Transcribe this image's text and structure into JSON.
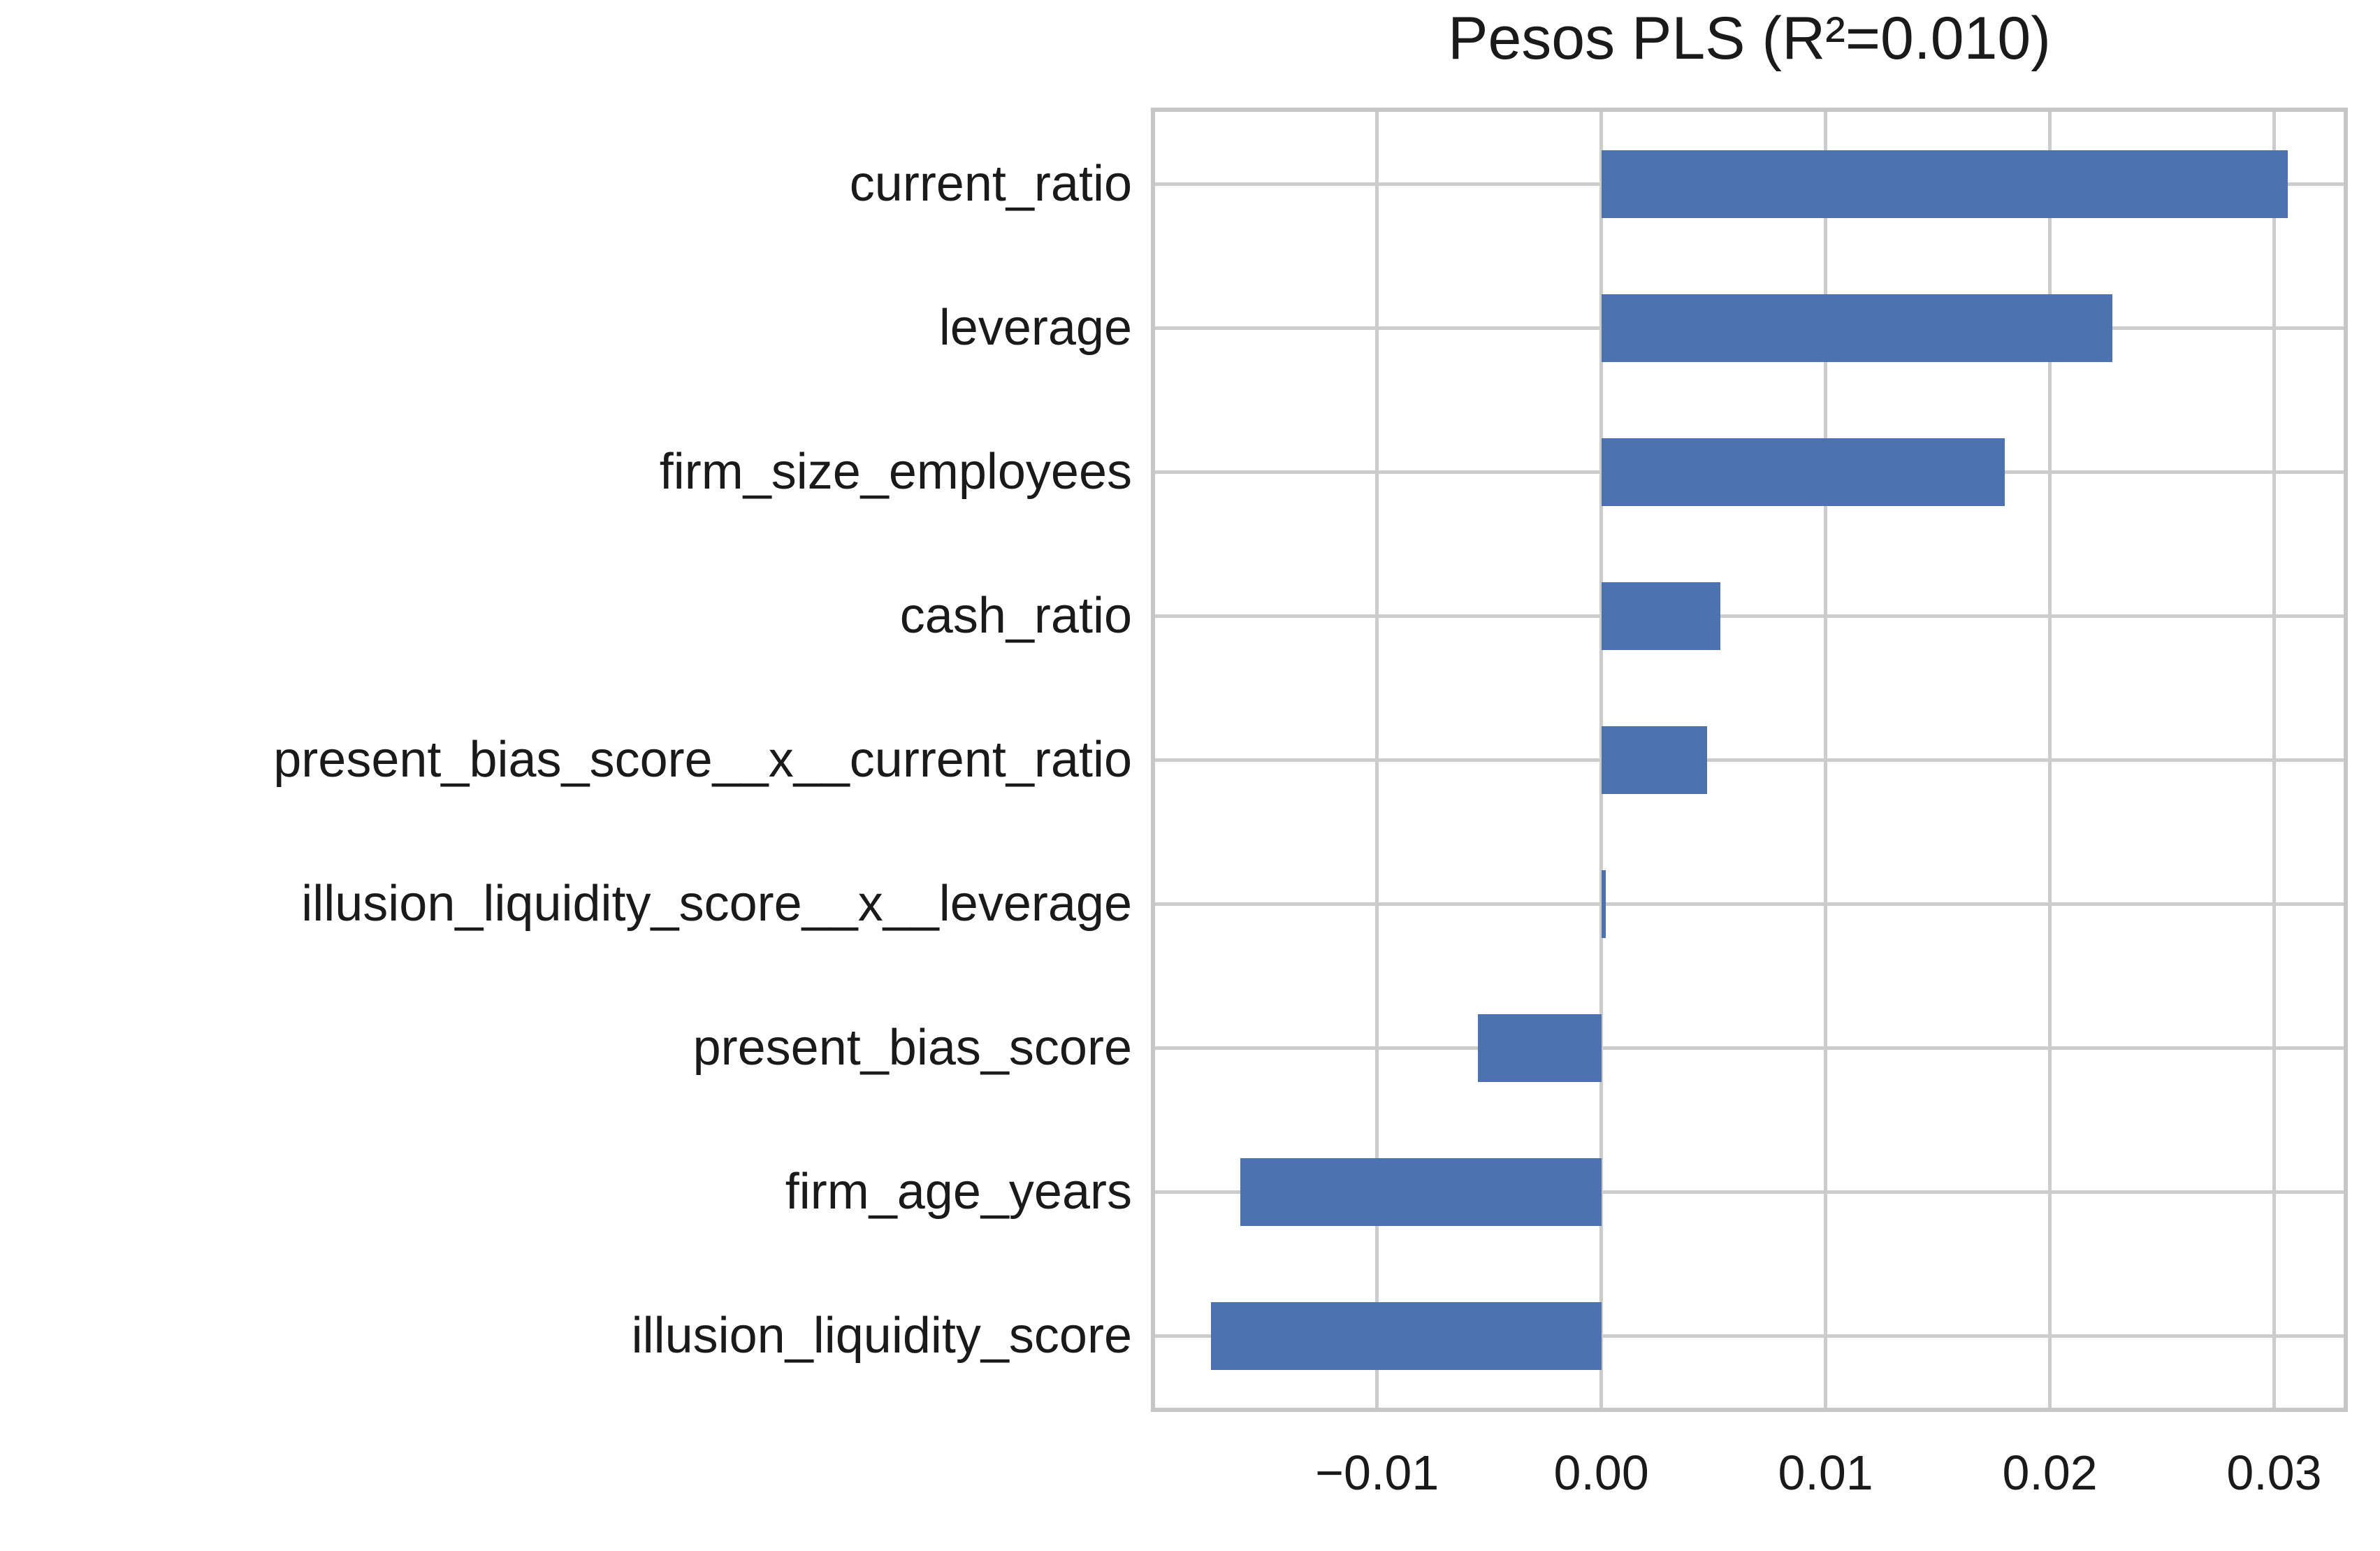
{
  "chart_data": {
    "type": "bar",
    "orientation": "horizontal",
    "title": "Pesos PLS (R²=0.010)",
    "categories": [
      "current_ratio",
      "leverage",
      "firm_size_employees",
      "cash_ratio",
      "present_bias_score__x__current_ratio",
      "illusion_liquidity_score__x__leverage",
      "present_bias_score",
      "firm_age_years",
      "illusion_liquidity_score"
    ],
    "values": [
      0.0306,
      0.0228,
      0.018,
      0.0053,
      0.0047,
      0.0002,
      -0.0055,
      -0.0161,
      -0.0174
    ],
    "x_ticks": [
      -0.01,
      0.0,
      0.01,
      0.02,
      0.03
    ],
    "x_tick_labels": [
      "−0.01",
      "0.00",
      "0.01",
      "0.02",
      "0.03"
    ],
    "xlim": [
      -0.0199,
      0.0331
    ],
    "xlabel": "",
    "ylabel": "",
    "grid": "on",
    "legend": "none",
    "bar_color": "#4C72B0",
    "grid_color": "#cccccc",
    "spine_color": "#c6c6c6",
    "text_color": "#1a1a1a"
  }
}
